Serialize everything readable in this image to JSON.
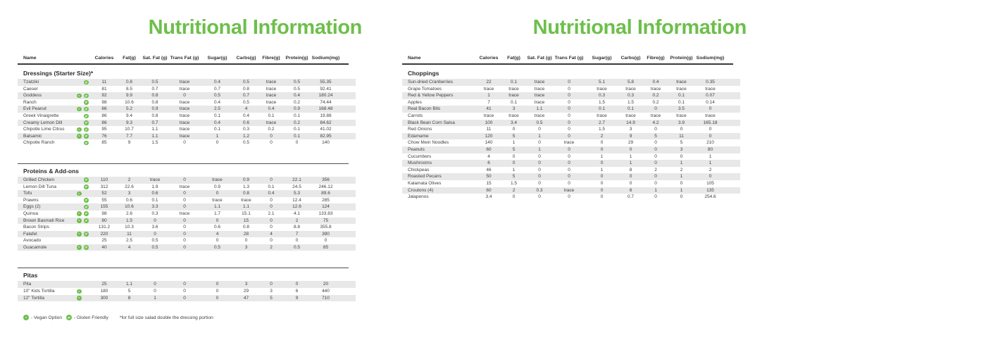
{
  "colors": {
    "accent_green": "#6dbf4b",
    "row_shade": "#e8e8e8",
    "text": "#3f3f3f",
    "rule": "#3a3a3a"
  },
  "columns": [
    "Name",
    "Calories",
    "Fat(g)",
    "Sat. Fat (g)",
    "Trans Fat (g)",
    "Sugar(g)",
    "Carbs(g)",
    "Fibre(g)",
    "Protein(g)",
    "Sodium(mg)"
  ],
  "legend": {
    "vegan_symbol": "v",
    "vegan_label": "- Vegan Option",
    "gf_symbol": "gf",
    "gf_label": "- Gluten Friendly",
    "note": "*for full size salad double the dressing portion"
  },
  "panels": [
    {
      "title": "Nutritional Information",
      "show_legend": true,
      "sections": [
        {
          "heading": "Dressings (Starter Size)*",
          "rows": [
            {
              "name": "Tzatziki",
              "icons": [
                "gf"
              ],
              "values": [
                "11",
                "0.8",
                "0.5",
                "trace",
                "0.4",
                "0.5",
                "trace",
                "0.5",
                "55.35"
              ]
            },
            {
              "name": "Caeser",
              "icons": [],
              "values": [
                "81",
                "8.5",
                "0.7",
                "trace",
                "0.7",
                "0.8",
                "trace",
                "0.5",
                "92.41"
              ]
            },
            {
              "name": "Goddess",
              "icons": [
                "v",
                "gf"
              ],
              "values": [
                "92",
                "9.9",
                "0.8",
                "0",
                "0.5",
                "0.7",
                "trace",
                "0.4",
                "180.24"
              ]
            },
            {
              "name": "Ranch",
              "icons": [
                "gf"
              ],
              "values": [
                "98",
                "10.6",
                "0.8",
                "trace",
                "0.4",
                "0.5",
                "trace",
                "0.2",
                "74.44"
              ]
            },
            {
              "name": "Evil Peanut",
              "icons": [
                "v",
                "gf"
              ],
              "values": [
                "66",
                "5.2",
                "0.9",
                "trace",
                "2.5",
                "4",
                "0.4",
                "0.9",
                "168.48"
              ]
            },
            {
              "name": "Greek Vinaigrette",
              "icons": [
                "gf"
              ],
              "values": [
                "86",
                "9.4",
                "0.8",
                "trace",
                "0.1",
                "0.4",
                "0.1",
                "0.1",
                "19.88"
              ]
            },
            {
              "name": "Creamy Lemon Dill",
              "icons": [
                "gf"
              ],
              "values": [
                "86",
                "9.3",
                "0.7",
                "trace",
                "0.4",
                "0.6",
                "trace",
                "0.2",
                "84.62"
              ]
            },
            {
              "name": "Chipotle Lime Citrus",
              "icons": [
                "v",
                "gf"
              ],
              "values": [
                "95",
                "10.7",
                "1.1",
                "trace",
                "0.1",
                "0.3",
                "0.2",
                "0.1",
                "41.02"
              ]
            },
            {
              "name": "Balsamic",
              "icons": [
                "v",
                "gf"
              ],
              "values": [
                "76",
                "7.7",
                "1.1",
                "trace",
                "1",
                "1.2",
                "0",
                "0.1",
                "82.95"
              ]
            },
            {
              "name": "Chipotle Ranch",
              "icons": [
                "gf"
              ],
              "values": [
                "85",
                "9",
                "1.5",
                "0",
                "0",
                "0.5",
                "0",
                "0",
                "140"
              ]
            }
          ]
        },
        {
          "heading": "Proteins & Add-ons",
          "rows": [
            {
              "name": "Grilled Chicken",
              "icons": [
                "gf"
              ],
              "values": [
                "110",
                "2",
                "trace",
                "0",
                "trace",
                "0.9",
                "0",
                "22.1",
                "356"
              ]
            },
            {
              "name": "Lemon Dill Tuna",
              "icons": [
                "gf"
              ],
              "values": [
                "312",
                "22.6",
                "1.9",
                "trace",
                "0.9",
                "1.3",
                "0.1",
                "24.5",
                "246.12"
              ]
            },
            {
              "name": "Tofu",
              "icons": [
                "v"
              ],
              "values": [
                "52",
                "3",
                "0.6",
                "0",
                "0",
                "0.8",
                "0.4",
                "5.3",
                "89.6"
              ]
            },
            {
              "name": "Prawns",
              "icons": [
                "gf"
              ],
              "values": [
                "55",
                "0.6",
                "0.1",
                "0",
                "trace",
                "trace",
                "0",
                "12.4",
                "285"
              ]
            },
            {
              "name": "Eggs (2)",
              "icons": [
                "gf"
              ],
              "values": [
                "155",
                "10.6",
                "3.3",
                "0",
                "1.1",
                "1.1",
                "0",
                "12.6",
                "124"
              ]
            },
            {
              "name": "Quinoa",
              "icons": [
                "v",
                "gf"
              ],
              "values": [
                "98",
                "2.6",
                "0.3",
                "trace",
                "1.7",
                "15.1",
                "2.1",
                "4.1",
                "133.83"
              ]
            },
            {
              "name": "Brown Basmati Rice",
              "icons": [
                "v",
                "gf"
              ],
              "values": [
                "80",
                "1.5",
                "0",
                "0",
                "0",
                "15",
                "0",
                "2",
                "75"
              ]
            },
            {
              "name": "Bacon Strips",
              "icons": [],
              "values": [
                "131.2",
                "10.3",
                "3.6",
                "0",
                "0.6",
                "0.8",
                "0",
                "8.8",
                "355.8"
              ]
            },
            {
              "name": "Falafel",
              "icons": [
                "v",
                "gf"
              ],
              "values": [
                "220",
                "11",
                "0",
                "0",
                "4",
                "28",
                "4",
                "7",
                "390"
              ]
            },
            {
              "name": "Avocado",
              "icons": [],
              "values": [
                "25",
                "2.5",
                "0.5",
                "0",
                "0",
                "0",
                "0",
                "0",
                "0"
              ]
            },
            {
              "name": "Guacamole",
              "icons": [
                "v",
                "gf"
              ],
              "values": [
                "40",
                "4",
                "0.5",
                "0",
                "0.5",
                "3",
                "2",
                "0.5",
                "85"
              ]
            }
          ]
        },
        {
          "heading": "Pitas",
          "rows": [
            {
              "name": "Pita",
              "icons": [],
              "values": [
                "25",
                "1.1",
                "0",
                "0",
                "0",
                "3",
                "0",
                "0",
                "20"
              ]
            },
            {
              "name": "10\" Kids Tortilla",
              "icons": [
                "v"
              ],
              "values": [
                "180",
                "5",
                "0",
                "0",
                "0",
                "29",
                "3",
                "6",
                "440"
              ]
            },
            {
              "name": "12\" Tortilla",
              "icons": [
                "v"
              ],
              "values": [
                "300",
                "8",
                "1",
                "0",
                "0",
                "47",
                "5",
                "9",
                "710"
              ]
            }
          ]
        }
      ]
    },
    {
      "title": "Nutritional Information",
      "show_legend": false,
      "sections": [
        {
          "heading": "Choppings",
          "rows": [
            {
              "name": "Sun-dried Cranberries",
              "icons": [],
              "values": [
                "22",
                "0.1",
                "trace",
                "0",
                "5.1",
                "5.8",
                "0.4",
                "trace",
                "0.35"
              ]
            },
            {
              "name": "Grape Tomatoes",
              "icons": [],
              "values": [
                "trace",
                "trace",
                "trace",
                "0",
                "trace",
                "trace",
                "trace",
                "trace",
                "trace"
              ]
            },
            {
              "name": "Red & Yellow Peppers",
              "icons": [],
              "values": [
                "1",
                "trace",
                "trace",
                "0",
                "0.3",
                "0.3",
                "0.2",
                "0.1",
                "0.07"
              ]
            },
            {
              "name": "Apples",
              "icons": [],
              "values": [
                "7",
                "0.1",
                "trace",
                "0",
                "1.5",
                "1.5",
                "0.2",
                "0.1",
                "0.14"
              ]
            },
            {
              "name": "Real Bacon Bits",
              "icons": [],
              "values": [
                "41",
                "3",
                "1.1",
                "0",
                "0.1",
                "0.1",
                "0",
                "3.5",
                "0"
              ]
            },
            {
              "name": "Carrots",
              "icons": [],
              "values": [
                "trace",
                "trace",
                "trace",
                "0",
                "trace",
                "trace",
                "trace",
                "trace",
                "trace"
              ]
            },
            {
              "name": "Black Bean Corn Salsa",
              "icons": [],
              "values": [
                "100",
                "3.4",
                "0.5",
                "0",
                "2.7",
                "14.9",
                "4.2",
                "3.9",
                "165.18"
              ]
            },
            {
              "name": "Red Onions",
              "icons": [],
              "values": [
                "11",
                "0",
                "0",
                "0",
                "1.5",
                "3",
                "0",
                "0",
                "0"
              ]
            },
            {
              "name": "Edamame",
              "icons": [],
              "values": [
                "120",
                "5",
                "1",
                "0",
                "2",
                "9",
                "5",
                "11",
                "0"
              ]
            },
            {
              "name": "Chow Mein Noodles",
              "icons": [],
              "values": [
                "140",
                "1",
                "0",
                "trace",
                "0",
                "29",
                "0",
                "5",
                "210"
              ]
            },
            {
              "name": "Peanuts",
              "icons": [],
              "values": [
                "60",
                "5",
                "1",
                "0",
                "0",
                "0",
                "0",
                "3",
                "80"
              ]
            },
            {
              "name": "Cucumbers",
              "icons": [],
              "values": [
                "4",
                "0",
                "0",
                "0",
                "1",
                "1",
                "0",
                "0",
                "1"
              ]
            },
            {
              "name": "Mushrooms",
              "icons": [],
              "values": [
                "6",
                "0",
                "0",
                "0",
                "0",
                "1",
                "0",
                "1",
                "1"
              ]
            },
            {
              "name": "Chickpeas",
              "icons": [],
              "values": [
                "46",
                "1",
                "0",
                "0",
                "1",
                "8",
                "2",
                "2",
                "2"
              ]
            },
            {
              "name": "Roasted Pecans",
              "icons": [],
              "values": [
                "50",
                "5",
                "0",
                "0",
                "0",
                "0",
                "0",
                "1",
                "0"
              ]
            },
            {
              "name": "Kalamata Olives",
              "icons": [],
              "values": [
                "15",
                "1.5",
                "0",
                "0",
                "0",
                "0",
                "0",
                "0",
                "105"
              ]
            },
            {
              "name": "Croutons (4)",
              "icons": [],
              "values": [
                "60",
                "2",
                "0.3",
                "trace",
                "0",
                "8",
                "1",
                "1",
                "135"
              ]
            },
            {
              "name": "Jalapenos",
              "icons": [],
              "values": [
                "3.4",
                "0",
                "0",
                "0",
                "0",
                "0.7",
                "0",
                "0",
                "254.6"
              ]
            }
          ]
        }
      ]
    }
  ]
}
